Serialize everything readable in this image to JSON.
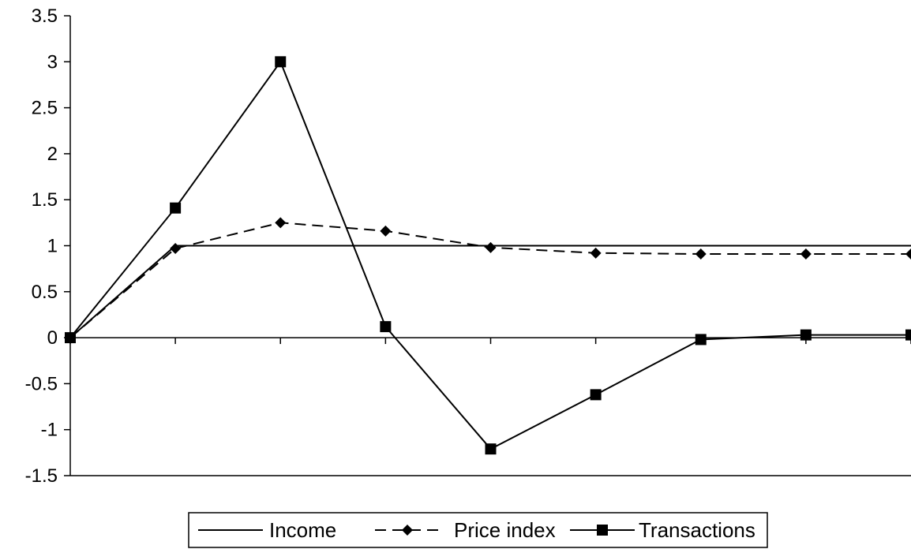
{
  "chart_data": {
    "type": "line",
    "x": [
      0,
      1,
      2,
      3,
      4,
      5,
      6,
      7,
      8
    ],
    "series": [
      {
        "name": "Income",
        "values": [
          0,
          1,
          1,
          1,
          1,
          1,
          1,
          1,
          1
        ],
        "style": "solid",
        "marker": "none",
        "color": "#000000"
      },
      {
        "name": "Price index",
        "values": [
          0,
          0.97,
          1.25,
          1.16,
          0.98,
          0.92,
          0.91,
          0.91,
          0.91
        ],
        "style": "dashed",
        "marker": "diamond",
        "color": "#000000"
      },
      {
        "name": "Transactions",
        "values": [
          0,
          1.41,
          3.0,
          0.12,
          -1.21,
          -0.62,
          -0.02,
          0.03,
          0.03
        ],
        "style": "solid",
        "marker": "square",
        "color": "#000000"
      }
    ],
    "ylim": [
      -1.5,
      3.5
    ],
    "yticks": [
      "3.5",
      "3",
      "2.5",
      "2",
      "1.5",
      "1",
      "0.5",
      "0",
      "-0.5",
      "-1",
      "-1.5"
    ],
    "ytick_values": [
      3.5,
      3,
      2.5,
      2,
      1.5,
      1,
      0.5,
      0,
      -0.5,
      -1,
      -1.5
    ],
    "title": "",
    "xlabel": "",
    "ylabel": "",
    "grid": false,
    "legend": "bottom"
  }
}
